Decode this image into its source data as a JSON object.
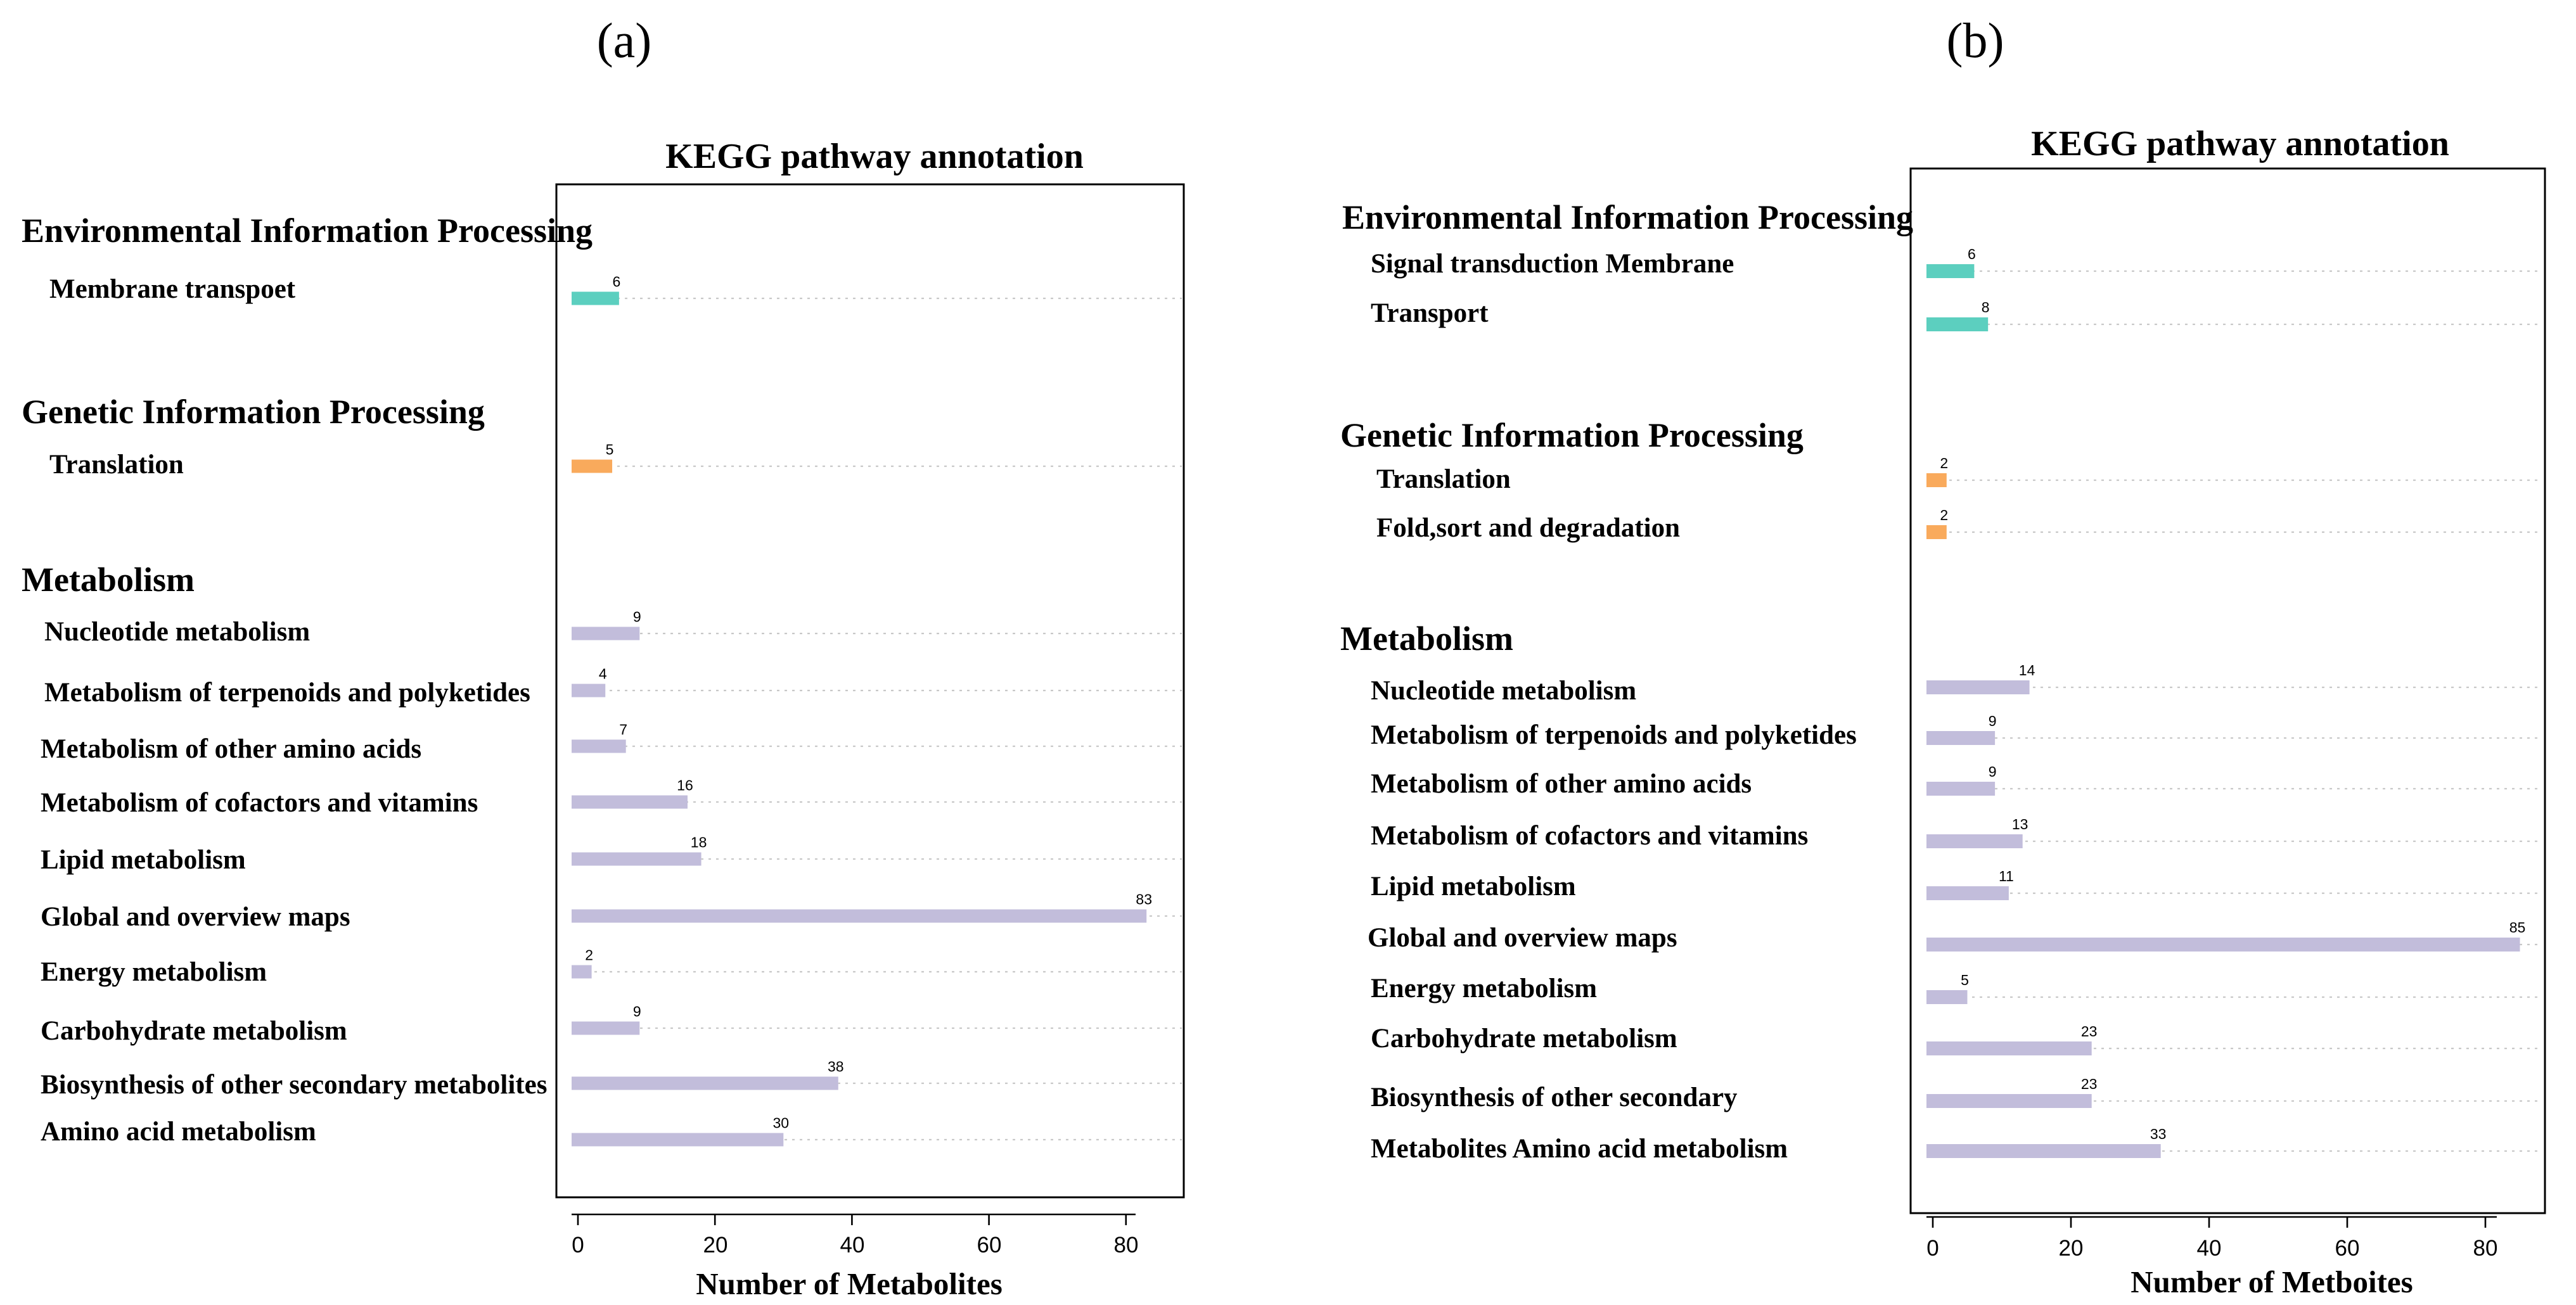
{
  "chart_data": [
    {
      "type": "bar",
      "orientation": "horizontal",
      "panel_label": "(a)",
      "title": "KEGG pathway annotation",
      "xlabel": "Number of Metabolites",
      "xlim": [
        -2,
        88
      ],
      "xticks": [
        0,
        20,
        40,
        60,
        80
      ],
      "grid": "dotted horizontal guide per bar",
      "groups": [
        {
          "name": "Environmental Information Processing",
          "color": "#5ccfbf",
          "categories": [
            "Membrane transpoet"
          ],
          "values": [
            6
          ]
        },
        {
          "name": "Genetic Information Processing",
          "color": "#f9aa5c",
          "categories": [
            "Translation"
          ],
          "values": [
            5
          ]
        },
        {
          "name": "Metabolism",
          "color": "#c2bddb",
          "categories": [
            "Nucleotide metabolism",
            "Metabolism of terpenoids and polyketides",
            "Metabolism of other amino acids",
            "Metabolism of cofactors and vitamins",
            "Lipid metabolism",
            "Global and overview maps",
            "Energy metabolism",
            "Carbohydrate metabolism",
            "Biosynthesis of other secondary metabolites",
            "Amino acid metabolism"
          ],
          "values": [
            9,
            4,
            7,
            16,
            18,
            83,
            2,
            9,
            38,
            30
          ]
        }
      ]
    },
    {
      "type": "bar",
      "orientation": "horizontal",
      "panel_label": "(b)",
      "title": "KEGG pathway annotation",
      "xlabel": "Number of Metboites",
      "xlim": [
        -2,
        88
      ],
      "xticks": [
        0,
        20,
        40,
        60,
        80
      ],
      "grid": "dotted horizontal guide per bar",
      "groups": [
        {
          "name": "Environmental Information Processing",
          "color": "#5ccfbf",
          "categories": [
            "Signal transduction Membrane",
            "Transport"
          ],
          "values": [
            6,
            8
          ]
        },
        {
          "name": "Genetic Information Processing",
          "color": "#f9aa5c",
          "categories": [
            "Translation",
            "Fold,sort and degradation"
          ],
          "values": [
            2,
            2
          ]
        },
        {
          "name": "Metabolism",
          "color": "#c2bddb",
          "categories": [
            "Nucleotide metabolism",
            "Metabolism of terpenoids and polyketides",
            "Metabolism of other amino acids",
            "Metabolism of cofactors and vitamins",
            "Lipid metabolism",
            "Global and overview maps",
            "Energy metabolism",
            "Carbohydrate metabolism",
            "Biosynthesis of other secondary",
            "Metabolites Amino acid metabolism"
          ],
          "values": [
            14,
            9,
            9,
            13,
            11,
            85,
            5,
            23,
            23,
            33
          ]
        }
      ]
    }
  ]
}
